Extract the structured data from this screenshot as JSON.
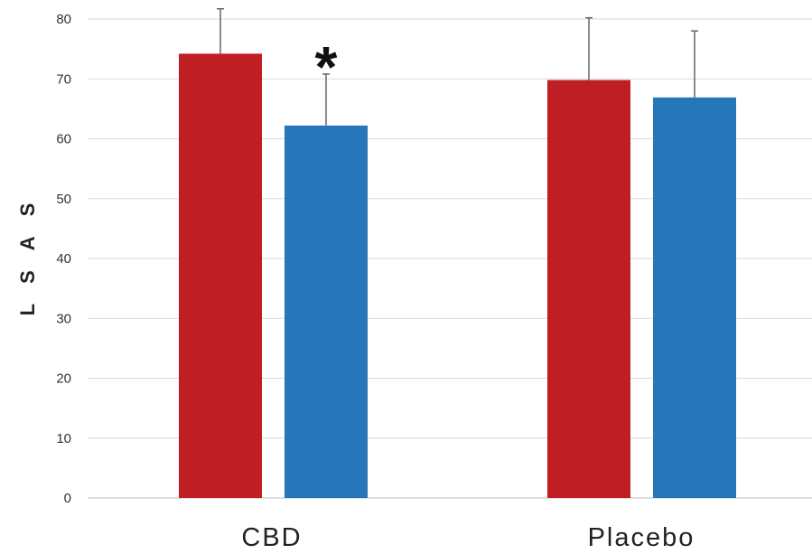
{
  "chart_data": {
    "type": "bar",
    "categories": [
      "CBD",
      "Placebo"
    ],
    "series": [
      {
        "values": [
          74.2,
          69.8
        ],
        "errors": [
          7.5,
          10.4
        ],
        "color": "#BE1E24"
      },
      {
        "values": [
          62.2,
          66.9
        ],
        "errors": [
          8.6,
          11.1
        ],
        "color": "#2776B9"
      }
    ],
    "ylabel": "LSAS",
    "ylim": [
      0,
      80
    ],
    "yticks": [
      0,
      10,
      20,
      30,
      40,
      50,
      60,
      70,
      80
    ],
    "grid": true,
    "legend": "none",
    "annotations": [
      {
        "text": "*",
        "category": "CBD",
        "series_index": 1
      }
    ]
  }
}
